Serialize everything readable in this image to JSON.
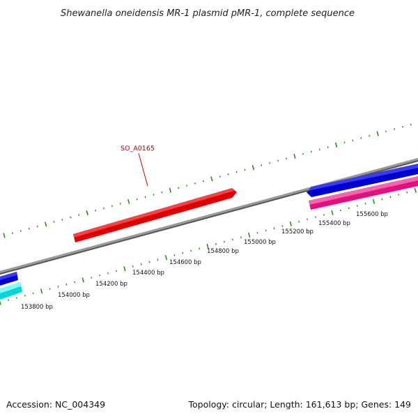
{
  "title": "Shewanella oneidensis MR-1 plasmid pMR-1, complete sequence",
  "footer": {
    "accession": "Accession: NC_004349",
    "summary": "Topology: circular; Length: 161,613 bp; Genes: 149"
  },
  "position_ruler": {
    "labels": [
      "153800 bp",
      "154000 bp",
      "154200 bp",
      "154400 bp",
      "154600 bp",
      "154800 bp",
      "155000 bp",
      "155200 bp",
      "155400 bp",
      "155600 bp"
    ]
  },
  "genes": [
    {
      "label": "SO_A0165",
      "color": "#ff0000",
      "strand": "forward"
    },
    {
      "label": "",
      "color": "#0000ee",
      "strand": "reverse"
    },
    {
      "label": "",
      "color": "#ff1493",
      "strand": "forward"
    },
    {
      "label": "",
      "color": "#0000ee",
      "strand": "forward"
    },
    {
      "label": "",
      "color": "#00ffff",
      "strand": "forward"
    }
  ],
  "colors": {
    "backbone": "#888888",
    "ticks": "#2e8b22",
    "forward_gene": "#ff0000",
    "reverse_gene": "#0000ee",
    "pink_gene": "#ff1493",
    "cyan_gene": "#00ffff"
  }
}
